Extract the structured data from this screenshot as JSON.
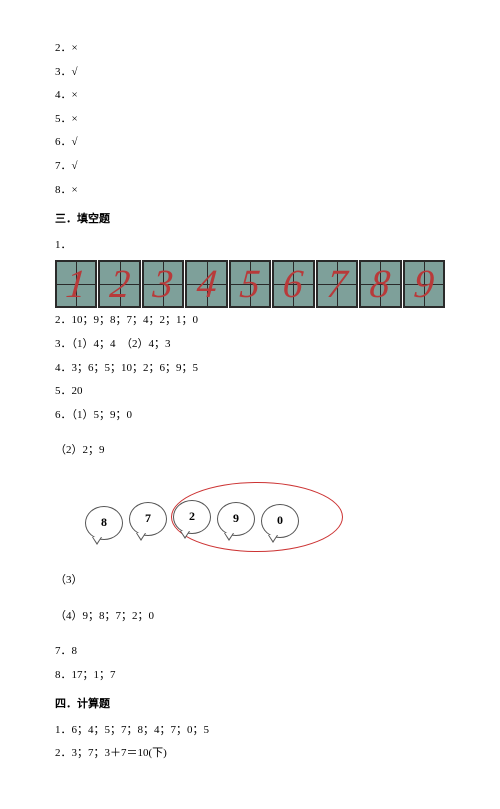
{
  "answers_tf": [
    "2．×",
    "3．√",
    "4．×",
    "5．×",
    "6．√",
    "7．√",
    "8．×"
  ],
  "section3": {
    "title": "三．填空题",
    "item1_label": "1．",
    "tiles": [
      "1",
      "2",
      "3",
      "4",
      "5",
      "6",
      "7",
      "8",
      "9"
    ],
    "tile_bg": "#7ea09a",
    "tile_border": "#2a2a2a",
    "tile_num_color": "#b83a3a",
    "lines_after_tiles": [
      "2．10；9；8；7；4；2；1；0",
      "3．（1）4；4　（2）4；3",
      "4．3；6；5；10；2；6；9；5",
      "5．20",
      "6．（1）5；9；0"
    ],
    "item6_2": "（2）2；9",
    "bubbles": [
      "8",
      "7",
      "2",
      "9",
      "0"
    ],
    "ellipse_color": "#cc3333",
    "item6_3_label": "（3）",
    "item6_4": "（4）9；8；7；2；0",
    "item7": "7．8",
    "item8": "8．17；1；7"
  },
  "section4": {
    "title": "四．计算题",
    "lines": [
      "1．6；4；5；7；8；4；7；0；5",
      "2．3；7；3＋7＝10(下)"
    ]
  }
}
